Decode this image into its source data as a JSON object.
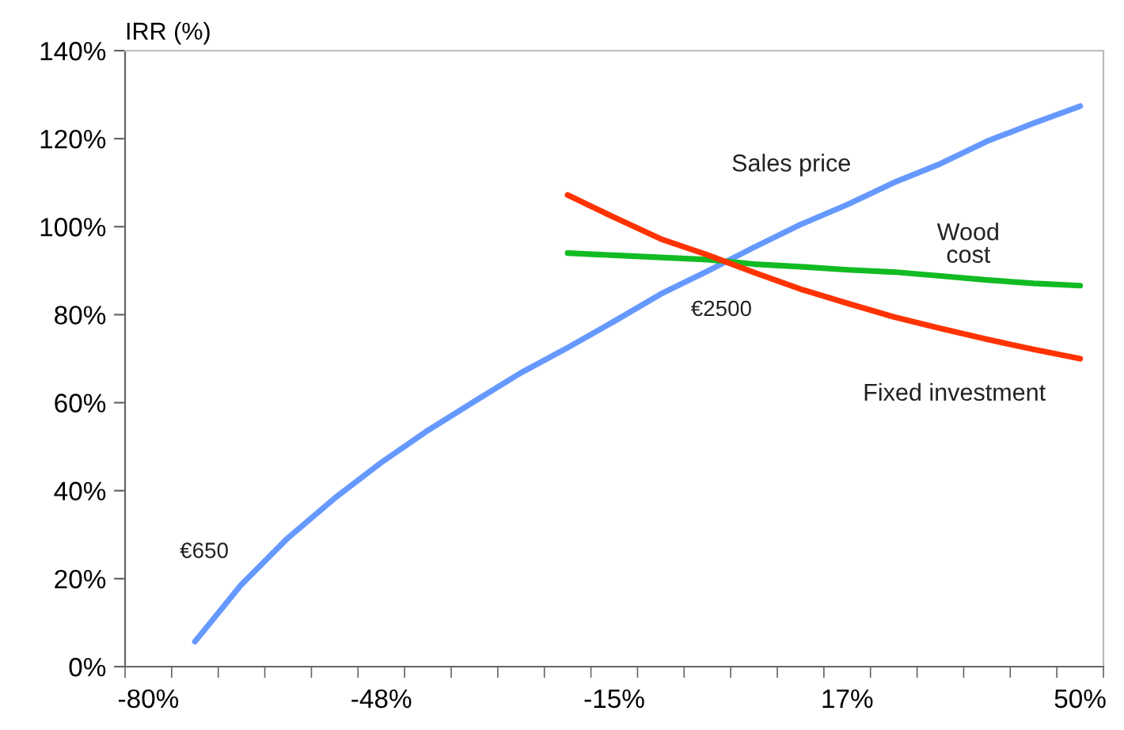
{
  "chart_data": {
    "type": "line",
    "ylabel": "IRR (%)",
    "categories": [
      "-80%",
      null,
      null,
      null,
      null,
      "-48%",
      null,
      null,
      null,
      null,
      "-15%",
      null,
      null,
      null,
      null,
      "17%",
      null,
      null,
      null,
      null,
      "50%"
    ],
    "series": [
      {
        "name": "Sales price",
        "color": "#6699ff",
        "values": [
          null,
          5.7,
          18.7,
          29.3,
          38.3,
          46.4,
          53.7,
          60.3,
          66.8,
          72.5,
          78.5,
          84.7,
          89.9,
          95.3,
          100.5,
          105,
          110,
          114.3,
          119.4,
          123.5,
          127.4
        ]
      },
      {
        "name": "Wood cost",
        "color": "#11bb22",
        "values": [
          null,
          null,
          null,
          null,
          null,
          null,
          null,
          null,
          null,
          94.0,
          93.5,
          93.0,
          92.5,
          91.5,
          90.9,
          90.2,
          89.7,
          88.8,
          87.9,
          87.1,
          86.6
        ]
      },
      {
        "name": "Fixed investment",
        "color": "#ff3300",
        "values": [
          null,
          null,
          null,
          null,
          null,
          null,
          null,
          null,
          null,
          107.2,
          102.1,
          97.2,
          93.6,
          89.6,
          85.8,
          82.6,
          79.5,
          76.9,
          74.4,
          72.1,
          70.0
        ]
      }
    ],
    "ylim": [
      0,
      140
    ],
    "yticks": [
      {
        "value": 0,
        "label": "0%"
      },
      {
        "value": 20,
        "label": "20%"
      },
      {
        "value": 40,
        "label": "40%"
      },
      {
        "value": 60,
        "label": "60%"
      },
      {
        "value": 80,
        "label": "80%"
      },
      {
        "value": 100,
        "label": "100%"
      },
      {
        "value": 120,
        "label": "120%"
      },
      {
        "value": 140,
        "label": "140%"
      }
    ],
    "annotations": [
      "€650",
      "€2500"
    ],
    "grid": false,
    "legend": false
  }
}
